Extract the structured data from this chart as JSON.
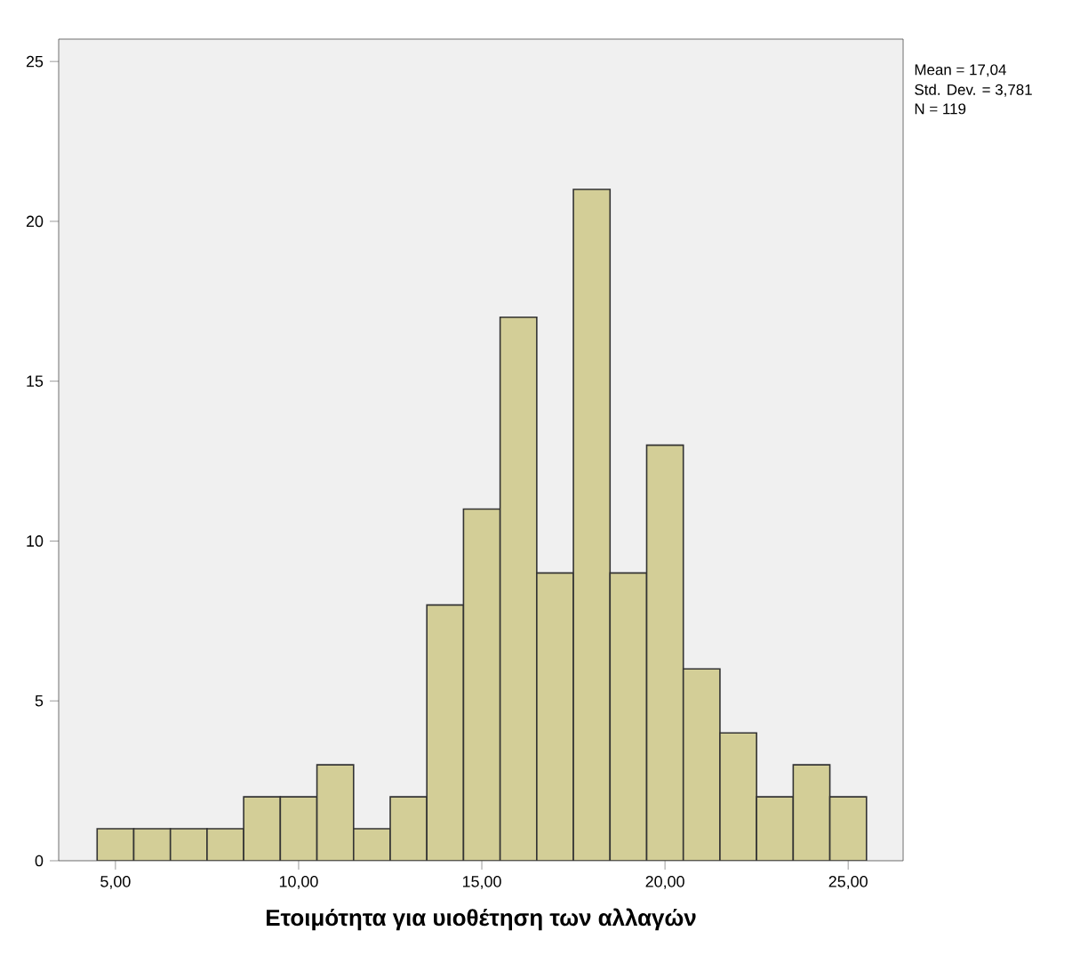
{
  "chart_data": {
    "type": "histogram",
    "xlabel": "Ετοιμότητα για υιοθέτηση των αλλαγών",
    "bins": [
      4.5,
      5.5,
      6.5,
      7.5,
      8.5,
      9.5,
      10.5,
      11.5,
      12.5,
      13.5,
      14.5,
      15.5,
      16.5,
      17.5,
      18.5,
      19.5,
      20.5,
      21.5,
      22.5,
      23.5,
      24.5,
      25.5
    ],
    "values": [
      1,
      1,
      1,
      1,
      2,
      2,
      3,
      1,
      2,
      8,
      11,
      17,
      9,
      21,
      9,
      13,
      6,
      4,
      2,
      3,
      2
    ],
    "color": "#d3ce97",
    "xlim": [
      3.45,
      26.5
    ],
    "ylim": [
      0,
      25.7
    ],
    "xticks": [
      {
        "value": 5,
        "label": "5,00"
      },
      {
        "value": 10,
        "label": "10,00"
      },
      {
        "value": 15,
        "label": "15,00"
      },
      {
        "value": 20,
        "label": "20,00"
      },
      {
        "value": 25,
        "label": "25,00"
      }
    ],
    "yticks": [
      0,
      5,
      10,
      15,
      20,
      25
    ],
    "grid": false,
    "annotations": [
      "Mean = 17,04",
      "Std. Dev. = 3,781",
      "N = 119"
    ]
  }
}
